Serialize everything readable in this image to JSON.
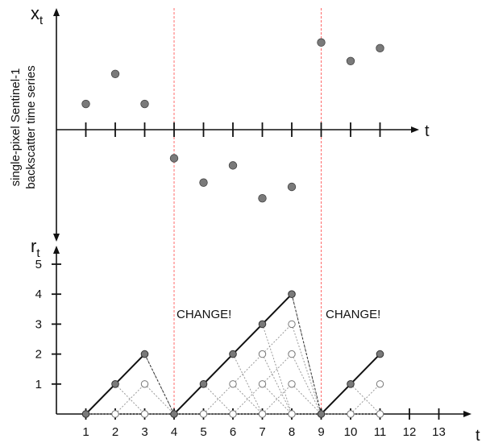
{
  "chart_data": [
    {
      "type": "scatter",
      "ylabel": "single-pixel Sentinel-1 backscatter time series",
      "y_axis_symbol": "x",
      "y_axis_subscript": "t",
      "x_axis_label": "t",
      "x": [
        1,
        2,
        3,
        4,
        5,
        6,
        7,
        8,
        9,
        10,
        11
      ],
      "y": [
        0.9,
        1.95,
        0.9,
        -1.0,
        -1.85,
        -1.25,
        -2.4,
        -2.0,
        3.05,
        2.4,
        2.85
      ],
      "marker_color": "#7a7a7a",
      "grid": false
    },
    {
      "type": "line",
      "title": "",
      "y_axis_symbol": "r",
      "y_axis_subscript": "t",
      "x_axis_label": "t",
      "x_ticks": [
        1,
        2,
        3,
        4,
        5,
        6,
        7,
        8,
        9,
        10,
        11,
        12,
        13
      ],
      "y_ticks": [
        1,
        2,
        3,
        4,
        5
      ],
      "ylim": [
        0,
        5
      ],
      "grid": false,
      "run_length_paths": [
        [
          [
            1,
            0
          ],
          [
            2,
            1
          ],
          [
            3,
            2
          ]
        ],
        [
          [
            4,
            0
          ],
          [
            5,
            1
          ],
          [
            6,
            2
          ],
          [
            7,
            3
          ],
          [
            8,
            4
          ]
        ],
        [
          [
            9,
            0
          ],
          [
            10,
            1
          ],
          [
            11,
            2
          ]
        ]
      ],
      "filled_points": [
        [
          1,
          0
        ],
        [
          2,
          1
        ],
        [
          3,
          2
        ],
        [
          4,
          0
        ],
        [
          5,
          1
        ],
        [
          6,
          2
        ],
        [
          7,
          3
        ],
        [
          8,
          4
        ],
        [
          9,
          0
        ],
        [
          10,
          1
        ],
        [
          11,
          2
        ]
      ],
      "hollow_points": [
        [
          2,
          0
        ],
        [
          3,
          0
        ],
        [
          3,
          1
        ],
        [
          5,
          0
        ],
        [
          6,
          0
        ],
        [
          6,
          1
        ],
        [
          7,
          0
        ],
        [
          7,
          1
        ],
        [
          7,
          2
        ],
        [
          8,
          0
        ],
        [
          8,
          1
        ],
        [
          8,
          2
        ],
        [
          8,
          3
        ],
        [
          10,
          0
        ],
        [
          11,
          0
        ],
        [
          11,
          1
        ]
      ],
      "change_points": [
        4,
        9
      ],
      "annotations": [
        "CHANGE!",
        "CHANGE!"
      ],
      "filled_color": "#7a7a7a",
      "changepoint_color": "#ff6b6b"
    }
  ]
}
